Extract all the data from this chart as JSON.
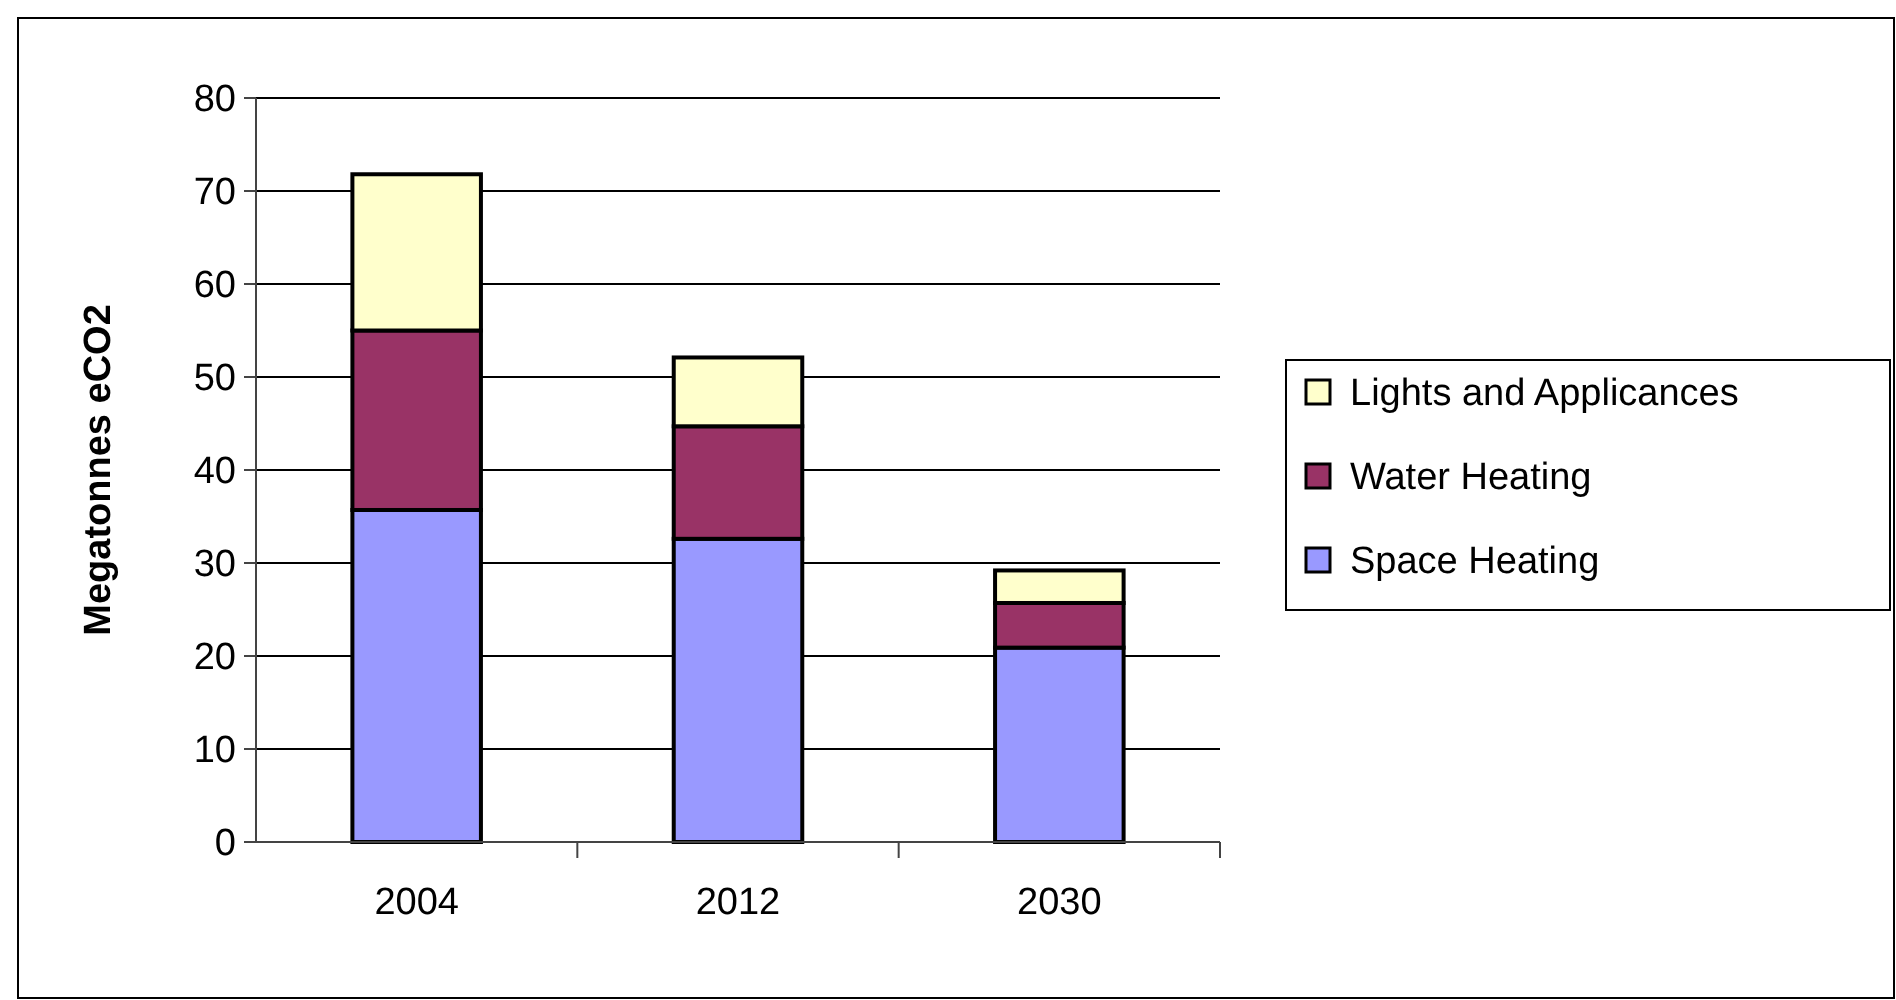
{
  "chart_data": {
    "type": "bar",
    "stacked": true,
    "ylabel": "Megatonnes eCO2",
    "categories": [
      "2004",
      "2012",
      "2030"
    ],
    "series": [
      {
        "name": "Space Heating",
        "color": "#9999ff",
        "values": [
          35.7,
          32.6,
          20.9
        ]
      },
      {
        "name": "Water Heating",
        "color": "#993366",
        "values": [
          19.3,
          12.1,
          4.8
        ]
      },
      {
        "name": "Lights and Applicances",
        "color": "#ffffcc",
        "values": [
          16.8,
          7.4,
          3.5
        ]
      }
    ],
    "ylim": [
      0,
      80
    ],
    "yticks": [
      0,
      10,
      20,
      30,
      40,
      50,
      60,
      70,
      80
    ],
    "grid": "y",
    "legend": "right"
  }
}
